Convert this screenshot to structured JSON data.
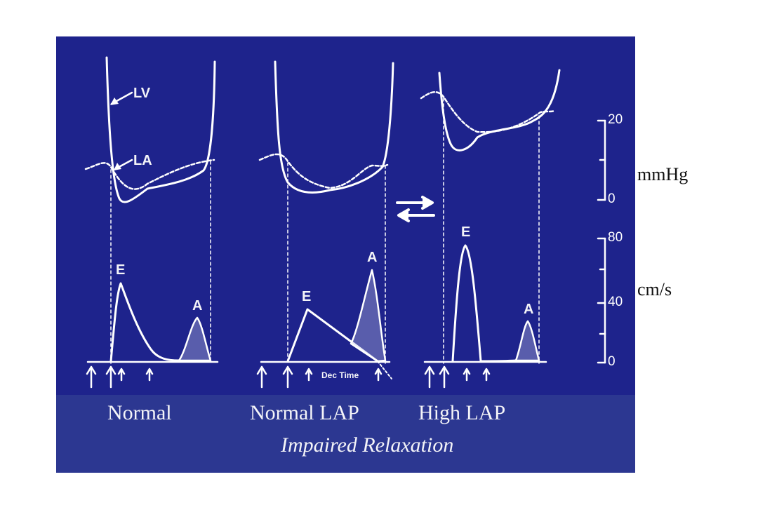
{
  "figure": {
    "bg_color": "#1e238c",
    "caption_band_color": "#2c3791",
    "line_color": "#ffffff",
    "panels": [
      {
        "caption": "Normal"
      },
      {
        "caption": "Normal LAP",
        "dec_time_label": "Dec Time"
      },
      {
        "caption": "High LAP"
      }
    ],
    "subtitle": "Impaired Relaxation",
    "curve_labels": {
      "lv": "LV",
      "la": "LA",
      "e_wave": "E",
      "a_wave": "A"
    },
    "pressure_axis": {
      "unit": "mmHg",
      "ticks": [
        "20",
        "0"
      ]
    },
    "velocity_axis": {
      "unit": "cm/s",
      "ticks": [
        "80",
        "40",
        "0"
      ]
    },
    "transition_arrows": "bidirectional"
  }
}
